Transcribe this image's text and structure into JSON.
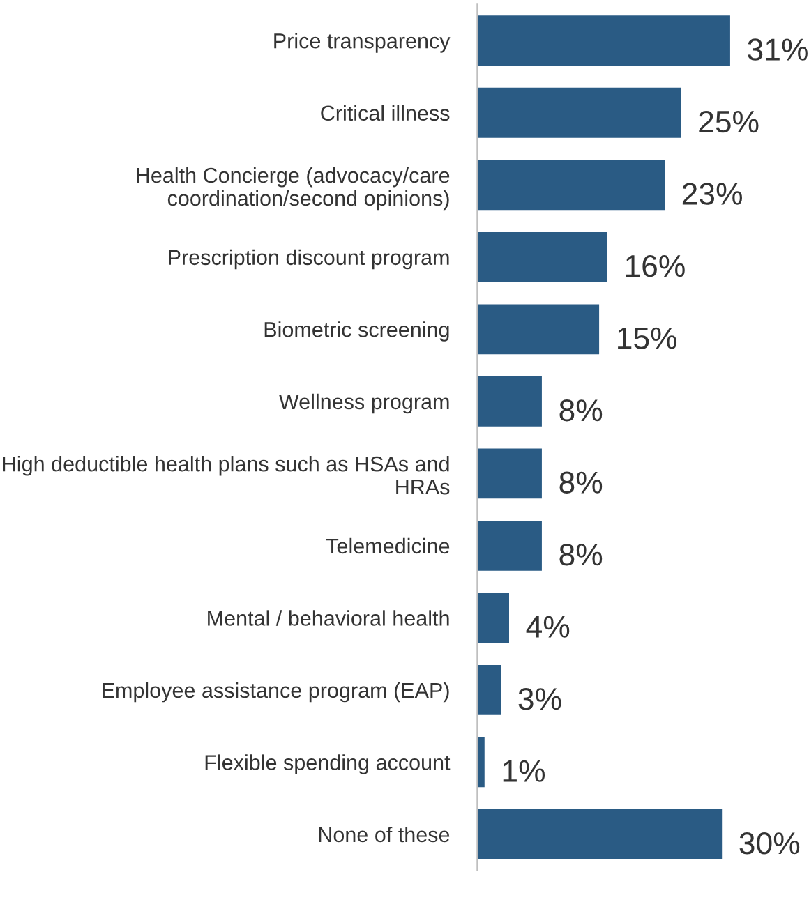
{
  "chart_data": {
    "type": "bar",
    "orientation": "horizontal",
    "categories": [
      "Price transparency",
      "Critical illness",
      "Health Concierge (advocacy/care coordination/second opinions)",
      "Prescription discount program",
      "Biometric screening",
      "Wellness program",
      "High deductible health plans such as HSAs and HRAs",
      "Telemedicine",
      "Mental / behavioral health",
      "Employee assistance program (EAP)",
      "Flexible spending account",
      "None of these"
    ],
    "values": [
      31,
      25,
      23,
      16,
      15,
      8,
      8,
      8,
      4,
      3,
      1,
      30
    ],
    "value_labels": [
      "31%",
      "25%",
      "23%",
      "16%",
      "15%",
      "8%",
      "8%",
      "8%",
      "4%",
      "3%",
      "1%",
      "30%"
    ],
    "color": "#2a5b84",
    "grid": false,
    "legend": false
  }
}
